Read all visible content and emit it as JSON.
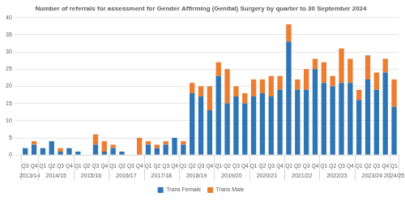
{
  "chart_data": {
    "type": "bar",
    "title": "Number of referrals for assessment for Gender Affirming (Genital) Surgery by quarter to 30 September 2024",
    "categories": [
      "Q3",
      "Q4",
      "Q1",
      "Q2",
      "Q3",
      "Q4",
      "Q1",
      "Q2",
      "Q3",
      "Q4",
      "Q1",
      "Q2",
      "Q3",
      "Q4",
      "Q1",
      "Q2",
      "Q3",
      "Q4",
      "Q1",
      "Q2",
      "Q3",
      "Q4",
      "Q1",
      "Q2",
      "Q3",
      "Q4",
      "Q1",
      "Q2",
      "Q3",
      "Q4",
      "Q1",
      "Q2",
      "Q3",
      "Q4",
      "Q1",
      "Q2",
      "Q3",
      "Q4",
      "Q1",
      "Q2",
      "Q3",
      "Q4",
      "Q1"
    ],
    "category_groups": [
      "2013/14",
      "2013/14",
      "2014/15",
      "2014/15",
      "2014/15",
      "2014/15",
      "2015/16",
      "2015/16",
      "2015/16",
      "2015/16",
      "2016/17",
      "2016/17",
      "2016/17",
      "2016/17",
      "2017/18",
      "2017/18",
      "2017/18",
      "2017/18",
      "2018/19",
      "2018/19",
      "2018/19",
      "2018/19",
      "2019/20",
      "2019/20",
      "2019/20",
      "2019/20",
      "2020/21",
      "2020/21",
      "2020/21",
      "2020/21",
      "2021/22",
      "2021/22",
      "2021/22",
      "2021/22",
      "2022/23",
      "2022/23",
      "2022/23",
      "2022/23",
      "2023/24",
      "2023/24",
      "2023/24",
      "2023/24",
      "2024/25"
    ],
    "series": [
      {
        "name": "Trans Female",
        "color": "#2e75b6",
        "values": [
          2,
          3,
          2,
          4,
          1,
          2,
          1,
          0,
          3,
          1,
          2,
          1,
          0,
          0,
          3,
          2,
          3,
          5,
          3,
          18,
          17,
          13,
          23,
          15,
          17,
          15,
          17,
          18,
          17,
          19,
          33,
          19,
          19,
          25,
          21,
          20,
          21,
          21,
          16,
          22,
          19,
          24,
          14
        ]
      },
      {
        "name": "Trans Male",
        "color": "#ed7d31",
        "values": [
          0,
          1,
          0,
          0,
          1,
          0,
          0,
          0,
          3,
          3,
          1,
          0,
          0,
          5,
          1,
          1,
          1,
          0,
          1,
          3,
          3,
          7,
          4,
          10,
          3,
          3,
          5,
          4,
          6,
          4,
          5,
          3,
          6,
          3,
          6,
          3,
          10,
          7,
          3,
          7,
          5,
          4,
          8
        ]
      }
    ],
    "ylim": [
      0,
      40
    ],
    "yticks": [
      0,
      5,
      10,
      15,
      20,
      25,
      30,
      35,
      40
    ],
    "grid": true,
    "stacked": true,
    "legend": "bottom"
  }
}
